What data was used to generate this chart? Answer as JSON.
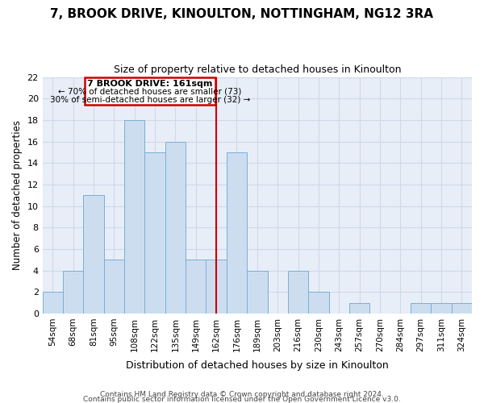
{
  "title": "7, BROOK DRIVE, KINOULTON, NOTTINGHAM, NG12 3RA",
  "subtitle": "Size of property relative to detached houses in Kinoulton",
  "xlabel": "Distribution of detached houses by size in Kinoulton",
  "ylabel": "Number of detached properties",
  "bar_labels": [
    "54sqm",
    "68sqm",
    "81sqm",
    "95sqm",
    "108sqm",
    "122sqm",
    "135sqm",
    "149sqm",
    "162sqm",
    "176sqm",
    "189sqm",
    "203sqm",
    "216sqm",
    "230sqm",
    "243sqm",
    "257sqm",
    "270sqm",
    "284sqm",
    "297sqm",
    "311sqm",
    "324sqm"
  ],
  "bar_values": [
    2,
    4,
    11,
    5,
    18,
    15,
    16,
    5,
    5,
    15,
    4,
    0,
    4,
    2,
    0,
    1,
    0,
    0,
    1,
    1,
    1
  ],
  "bar_color": "#ccddf0",
  "bar_edge_color": "#7bafd4",
  "vline_x_index": 8,
  "vline_color": "#cc0000",
  "annotation_title": "7 BROOK DRIVE: 161sqm",
  "annotation_line1": "← 70% of detached houses are smaller (73)",
  "annotation_line2": "30% of semi-detached houses are larger (32) →",
  "annotation_box_color": "#cc0000",
  "annotation_bg": "#ffffff",
  "ylim": [
    0,
    22
  ],
  "yticks": [
    0,
    2,
    4,
    6,
    8,
    10,
    12,
    14,
    16,
    18,
    20,
    22
  ],
  "footer1": "Contains HM Land Registry data © Crown copyright and database right 2024.",
  "footer2": "Contains public sector information licensed under the Open Government Licence v3.0.",
  "bg_color": "#ffffff",
  "grid_color": "#d0d8e8",
  "plot_bg_color": "#e8eef8"
}
